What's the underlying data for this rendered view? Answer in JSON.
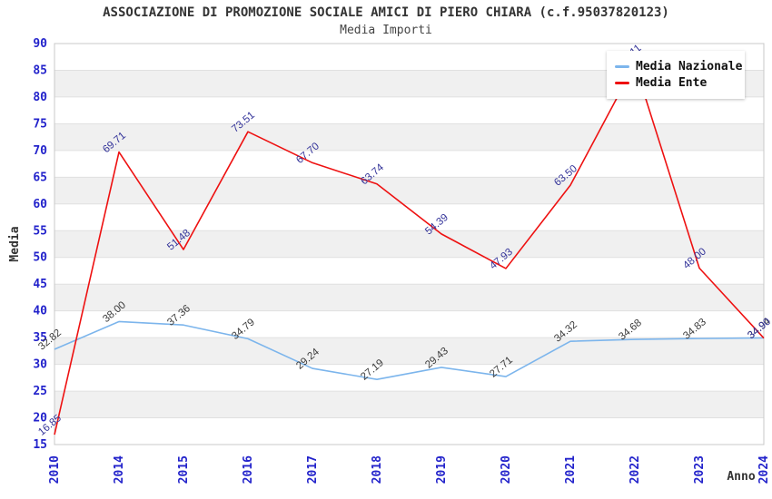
{
  "header": {
    "title": "ASSOCIAZIONE DI PROMOZIONE SOCIALE AMICI DI PIERO CHIARA (c.f.95037820123)",
    "subtitle": "Media Importi"
  },
  "chart_data": {
    "type": "line",
    "title": "ASSOCIAZIONE DI PROMOZIONE SOCIALE AMICI DI PIERO CHIARA (c.f.95037820123)",
    "subtitle": "Media Importi",
    "xlabel": "Anno",
    "ylabel": "Media",
    "ylim": [
      15,
      90
    ],
    "ytick_step": 5,
    "grid": true,
    "band_color": "#f0f0f0",
    "gridline_color": "#e0e0e0",
    "border_color": "#c8c8c8",
    "tick_label_color": "#2323cb",
    "axis_title_color": "#333333",
    "categories": [
      "2010",
      "2014",
      "2015",
      "2016",
      "2017",
      "2018",
      "2019",
      "2020",
      "2021",
      "2022",
      "2023",
      "2024"
    ],
    "series": [
      {
        "name": "Media Nazionale",
        "color": "#7cb5ec",
        "label_color": "#3a3a3a",
        "values": [
          32.82,
          38.0,
          37.36,
          34.79,
          29.24,
          27.19,
          29.43,
          27.71,
          34.32,
          34.68,
          34.83,
          34.94
        ]
      },
      {
        "name": "Media Ente",
        "color": "#ee1111",
        "label_color": "#333399",
        "values": [
          16.85,
          69.71,
          51.48,
          73.51,
          67.7,
          63.74,
          54.39,
          47.93,
          63.5,
          86.11,
          48.0,
          34.9
        ]
      }
    ],
    "legend": {
      "position": "top-right"
    }
  }
}
